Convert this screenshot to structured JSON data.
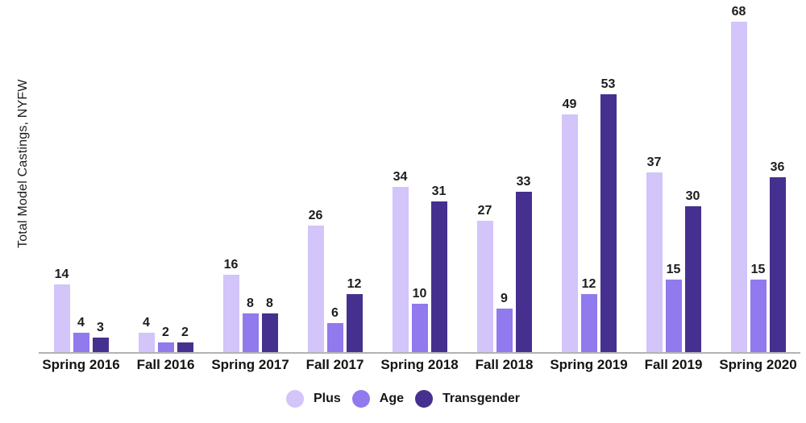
{
  "chart_data": {
    "type": "bar",
    "title": "",
    "xlabel": "",
    "ylabel": "Total Model Castings, NYFW",
    "categories": [
      "Spring 2016",
      "Fall 2016",
      "Spring 2017",
      "Fall 2017",
      "Spring 2018",
      "Fall 2018",
      "Spring 2019",
      "Fall 2019",
      "Spring 2020"
    ],
    "series": [
      {
        "name": "Plus",
        "color": "#d3c4fa",
        "values": [
          14,
          4,
          16,
          26,
          34,
          27,
          49,
          37,
          68
        ]
      },
      {
        "name": "Age",
        "color": "#9179ee",
        "values": [
          4,
          2,
          8,
          6,
          10,
          9,
          12,
          15,
          15
        ]
      },
      {
        "name": "Transgender",
        "color": "#46308f",
        "values": [
          3,
          2,
          8,
          12,
          31,
          33,
          53,
          30,
          36
        ]
      }
    ],
    "ylim": [
      0,
      68
    ],
    "grid": false,
    "value_labels_shown": true,
    "legend_position": "bottom",
    "axis_line_color": "#b3b3b3",
    "text_color": "#1c1c1c"
  }
}
